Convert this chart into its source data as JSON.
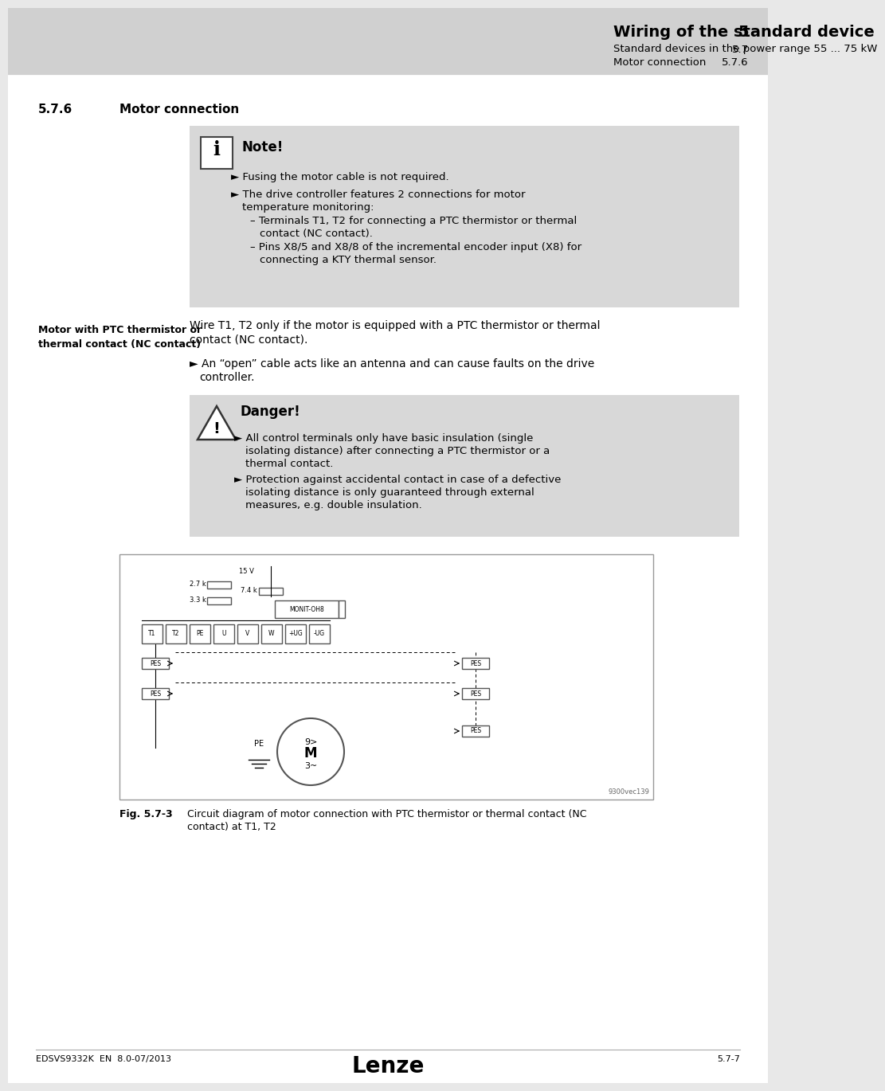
{
  "page_bg": "#e8e8e8",
  "header_bg": "#d0d0d0",
  "note_bg": "#d8d8d8",
  "danger_bg": "#d8d8d8",
  "header_title": "Wiring of the standard device",
  "header_num": "5",
  "header_sub1": "Standard devices in the power range 55 ... 75 kW",
  "header_sub1_num": "5.7",
  "header_sub2": "Motor connection",
  "header_sub2_num": "5.7.6",
  "section_num": "5.7.6",
  "section_title": "Motor connection",
  "note_title": "Note!",
  "side_label_bold": "Motor with PTC thermistor or\nthermal contact (NC contact)",
  "body_text1": "Wire T1, T2 only if the motor is equipped with a PTC thermistor or thermal\ncontact (NC contact).",
  "body_bullet1": "An “open” cable acts like an antenna and can cause faults on the drive\ncontroller.",
  "danger_title": "Danger!",
  "fig_label": "Fig. 5.7-3",
  "fig_caption": "Circuit diagram of motor connection with PTC thermistor or thermal contact (NC\ncontact) at T1, T2",
  "diagram_ref": "9300vec139",
  "footer_left": "EDSVS9332K  EN  8.0-07/2013",
  "footer_center": "Lenze",
  "footer_right": "5.7-7"
}
